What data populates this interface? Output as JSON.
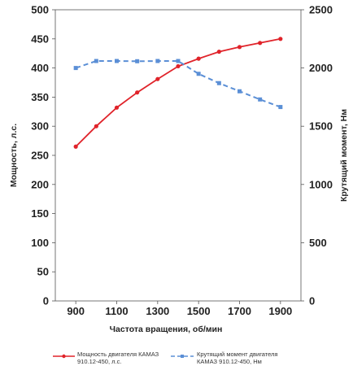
{
  "chart_data": {
    "type": "line",
    "title": "",
    "x": [
      900,
      1000,
      1100,
      1200,
      1300,
      1400,
      1500,
      1600,
      1700,
      1800,
      1900
    ],
    "x_ticks": [
      "900",
      "1100",
      "1300",
      "1500",
      "1700",
      "1900"
    ],
    "xlim": [
      800,
      2000
    ],
    "xlabel": "Частота вращения, об/мин",
    "ylabel_left": "Мощность, л.с.",
    "ylabel_right": "Крутящий момент, Нм",
    "ylim_left": [
      0,
      500
    ],
    "ylim_right": [
      0,
      2500
    ],
    "y_ticks_left": [
      "0",
      "50",
      "100",
      "150",
      "200",
      "250",
      "300",
      "350",
      "400",
      "450",
      "500"
    ],
    "y_ticks_right": [
      "0",
      "500",
      "1000",
      "1500",
      "2000",
      "2500"
    ],
    "grid": false,
    "legend_position": "bottom",
    "series": [
      {
        "name_line1": "Мощность двигателя КАМАЗ",
        "name_line2": "910.12-450, л.с.",
        "axis": "left",
        "color": "#e0232a",
        "style": "solid",
        "marker": "circle",
        "values": [
          265,
          300,
          332,
          358,
          381,
          403,
          416,
          428,
          436,
          443,
          450
        ]
      },
      {
        "name_line1": "Крутящий момент двигателя",
        "name_line2": "КАМАЗ 910.12-450, Нм",
        "axis": "right",
        "color": "#5b8fd6",
        "style": "dashed",
        "marker": "square",
        "values": [
          2000,
          2060,
          2060,
          2058,
          2060,
          2060,
          1950,
          1870,
          1800,
          1730,
          1665
        ]
      }
    ]
  }
}
